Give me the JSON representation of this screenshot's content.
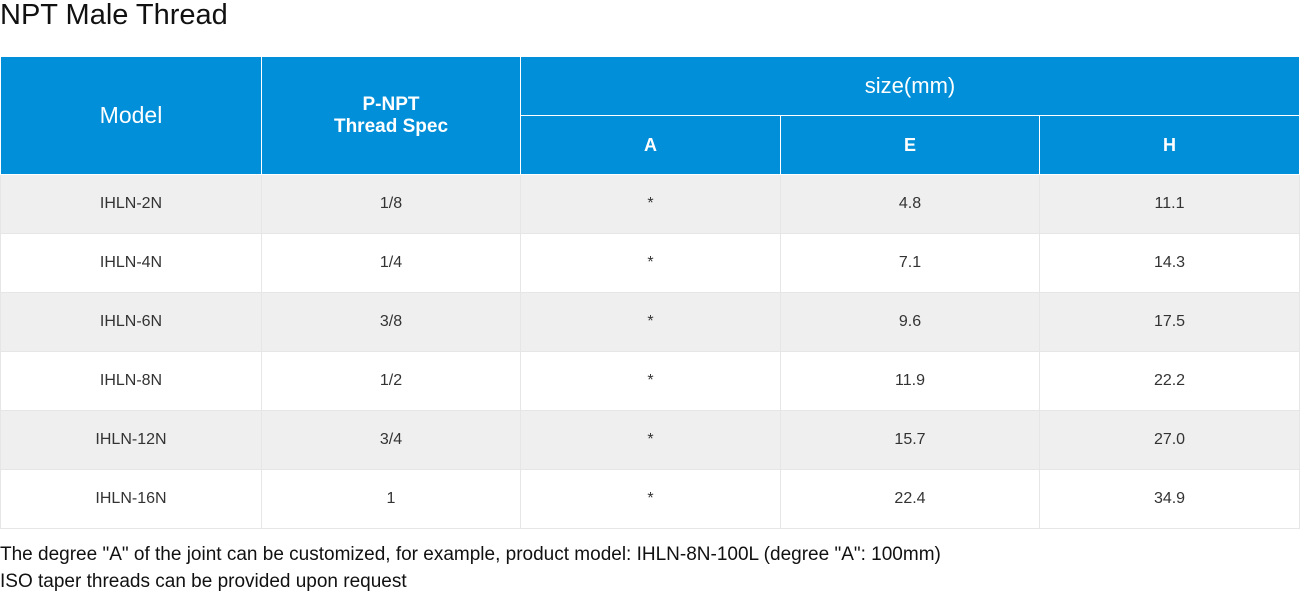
{
  "title": "NPT Male Thread",
  "table": {
    "headers": {
      "model": "Model",
      "thread_line1": "P-NPT",
      "thread_line2": "Thread Spec",
      "size_group": "size(mm)",
      "a": "A",
      "e": "E",
      "h": "H"
    },
    "rows": [
      {
        "model": "IHLN-2N",
        "thread": "1/8",
        "a": "*",
        "e": "4.8",
        "h": "11.1"
      },
      {
        "model": "IHLN-4N",
        "thread": "1/4",
        "a": "*",
        "e": "7.1",
        "h": "14.3"
      },
      {
        "model": "IHLN-6N",
        "thread": "3/8",
        "a": "*",
        "e": "9.6",
        "h": "17.5"
      },
      {
        "model": "IHLN-8N",
        "thread": "1/2",
        "a": "*",
        "e": "11.9",
        "h": "22.2"
      },
      {
        "model": "IHLN-12N",
        "thread": "3/4",
        "a": "*",
        "e": "15.7",
        "h": "27.0"
      },
      {
        "model": "IHLN-16N",
        "thread": "1",
        "a": "*",
        "e": "22.4",
        "h": "34.9"
      }
    ]
  },
  "notes": [
    "The degree \"A\" of the joint can be customized, for example, product model: IHLN-8N-100L (degree \"A\": 100mm)",
    "ISO taper threads can be provided upon request"
  ],
  "colors": {
    "header_bg": "#008fd8",
    "row_alt_bg": "#efeff0"
  }
}
